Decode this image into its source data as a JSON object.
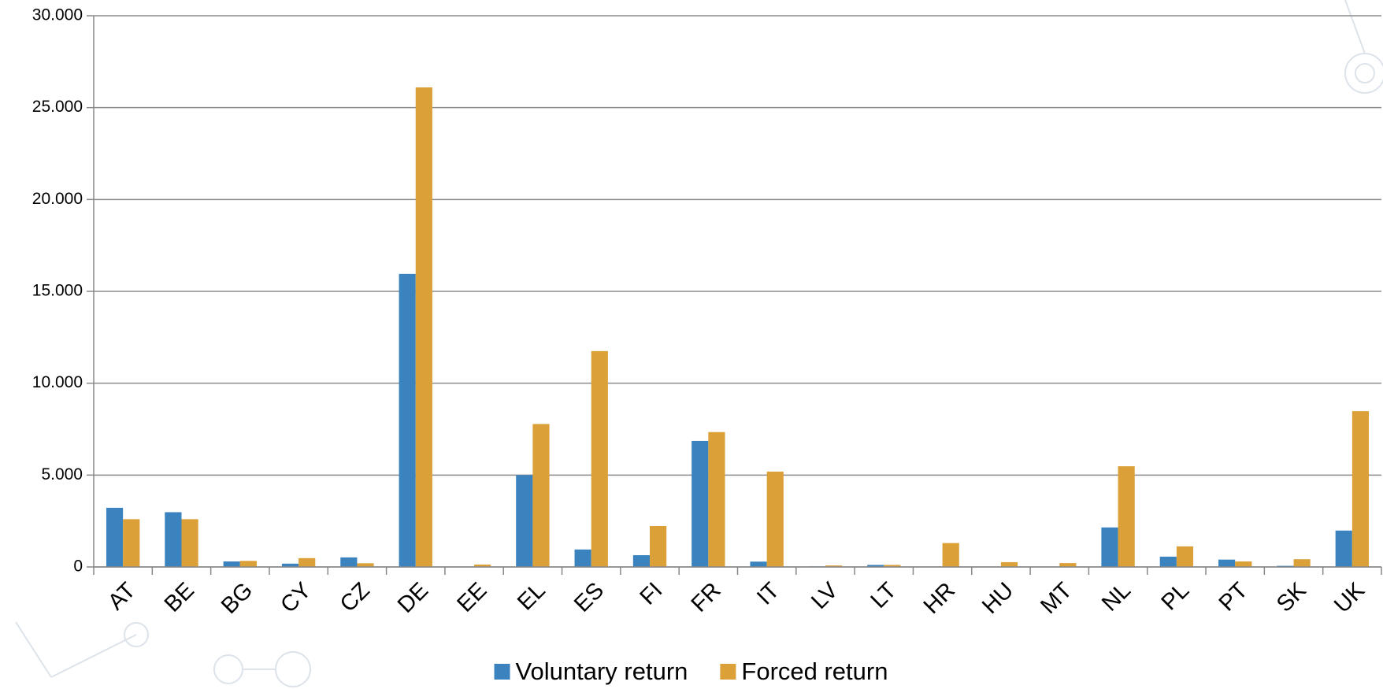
{
  "chart_data": {
    "type": "bar",
    "categories": [
      "AT",
      "BE",
      "BG",
      "CY",
      "CZ",
      "DE",
      "EE",
      "EL",
      "ES",
      "FI",
      "FR",
      "IT",
      "LV",
      "LT",
      "HR",
      "HU",
      "MT",
      "NL",
      "PL",
      "PT",
      "SK",
      "UK"
    ],
    "series": [
      {
        "name": "Voluntary return",
        "color": "#3a83bf",
        "values": [
          3220,
          2980,
          300,
          180,
          520,
          15950,
          10,
          5000,
          950,
          640,
          6860,
          290,
          30,
          110,
          0,
          0,
          0,
          2150,
          560,
          400,
          60,
          1980
        ]
      },
      {
        "name": "Forced return",
        "color": "#dba037",
        "values": [
          2600,
          2600,
          330,
          480,
          200,
          26100,
          130,
          7780,
          11750,
          2230,
          7340,
          5190,
          80,
          110,
          1300,
          260,
          210,
          5480,
          1120,
          300,
          420,
          8480
        ]
      }
    ],
    "ylim": [
      0,
      30000
    ],
    "yticks": [
      0,
      {
        "value": 5000,
        "label": "5.000"
      },
      {
        "value": 10000,
        "label": "10.000"
      },
      {
        "value": 15000,
        "label": "15.000"
      },
      {
        "value": 20000,
        "label": "20.000"
      },
      {
        "value": 25000,
        "label": "25.000"
      },
      {
        "value": 30000,
        "label": "30.000"
      }
    ],
    "grid": true,
    "legend": "bottom"
  }
}
